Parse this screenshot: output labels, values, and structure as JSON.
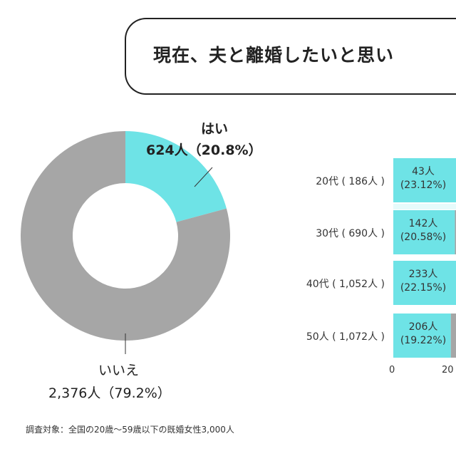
{
  "title": "現在、夫と離婚したいと思い",
  "colors": {
    "yes": "#6ee3e6",
    "no": "#a6a6a6"
  },
  "chart_data": [
    {
      "type": "pie",
      "donut": true,
      "slices": [
        {
          "label": "はい",
          "value": 624,
          "percent": 20.8,
          "text": "624人（20.8%）"
        },
        {
          "label": "いいえ",
          "value": 2376,
          "percent": 79.2,
          "text": "2,376人（79.2%）"
        }
      ]
    },
    {
      "type": "bar",
      "orientation": "horizontal",
      "stacked": true,
      "categories": [
        "20代（186人）",
        "30代（690人）",
        "40代（1,052人）",
        "50人（1,072人）"
      ],
      "category_labels": [
        "20代 ( 186人 )",
        "30代 ( 690人 )",
        "40代 ( 1,052人 )",
        "50人 ( 1,072人 )"
      ],
      "series": [
        {
          "values": [
            23.12,
            20.58,
            22.15,
            19.22
          ],
          "counts": [
            "43人",
            "142人",
            "233人",
            "206人"
          ],
          "labels": [
            "(23.12%)",
            "(20.58%)",
            "(22.15%)",
            "(19.22%)"
          ]
        }
      ],
      "x_ticks": [
        "0",
        "20"
      ]
    }
  ],
  "note": "調査対象：全国の20歳〜59歳以下の既婚女性3,000人"
}
